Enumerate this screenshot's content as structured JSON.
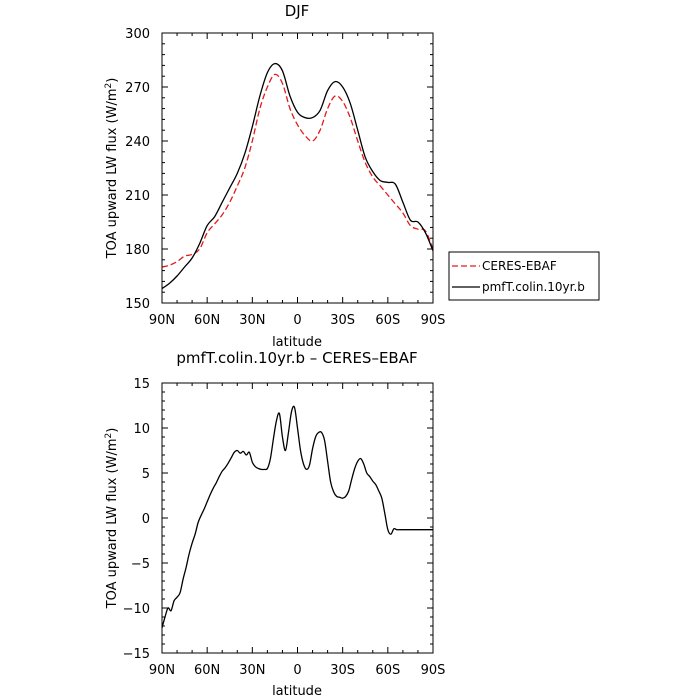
{
  "chart_data": [
    {
      "type": "line",
      "title": "DJF",
      "xlabel": "latitude",
      "ylabel": "TOA upward LW flux (W/m",
      "ylabel_sup": "2",
      "ylabel_close": ")",
      "x_ticks": [
        -90,
        -60,
        -30,
        0,
        30,
        60,
        90
      ],
      "x_tick_labels": [
        "90N",
        "60N",
        "30N",
        "0",
        "30S",
        "60S",
        "90S"
      ],
      "xlim": [
        -90,
        90
      ],
      "ylim": [
        150,
        300
      ],
      "y_ticks": [
        150,
        180,
        210,
        240,
        270,
        300
      ],
      "y_tick_labels": [
        "150",
        "180",
        "210",
        "240",
        "270",
        "300"
      ],
      "legend_position": "right",
      "series": [
        {
          "name": "CERES-EBAF",
          "color": "#e31a1c",
          "dash": "dashed",
          "x": [
            -90,
            -85,
            -80,
            -75,
            -70,
            -65,
            -60,
            -55,
            -50,
            -45,
            -40,
            -35,
            -30,
            -25,
            -20,
            -15,
            -10,
            -5,
            0,
            5,
            10,
            15,
            20,
            25,
            30,
            35,
            40,
            45,
            50,
            55,
            60,
            65,
            70,
            75,
            80,
            85,
            90
          ],
          "y": [
            170,
            171,
            173,
            176,
            177,
            180,
            189,
            194,
            199,
            206,
            215,
            225,
            240,
            258,
            270,
            277,
            272,
            258,
            249,
            243,
            240,
            246,
            258,
            265,
            262,
            253,
            240,
            228,
            220,
            215,
            210,
            205,
            200,
            193,
            191,
            190,
            180
          ]
        },
        {
          "name": "pmfT.colin.10yr.b",
          "color": "#000000",
          "dash": "solid",
          "x": [
            -90,
            -85,
            -80,
            -75,
            -70,
            -65,
            -60,
            -55,
            -50,
            -45,
            -40,
            -35,
            -30,
            -25,
            -20,
            -15,
            -10,
            -5,
            0,
            5,
            10,
            15,
            20,
            25,
            30,
            35,
            40,
            45,
            50,
            55,
            60,
            65,
            70,
            75,
            80,
            85,
            90
          ],
          "y": [
            158,
            161,
            165,
            170,
            175,
            183,
            193,
            198,
            206,
            214,
            222,
            233,
            248,
            265,
            278,
            283,
            279,
            265,
            256,
            253,
            253,
            257,
            268,
            273,
            270,
            261,
            246,
            231,
            223,
            218,
            217,
            216,
            206,
            196,
            195,
            189,
            179
          ]
        }
      ]
    },
    {
      "type": "line",
      "title": "pmfT.colin.10yr.b – CERES–EBAF",
      "xlabel": "latitude",
      "ylabel": "TOA upward LW flux (W/m",
      "ylabel_sup": "2",
      "ylabel_close": ")",
      "x_ticks": [
        -90,
        -60,
        -30,
        0,
        30,
        60,
        90
      ],
      "x_tick_labels": [
        "90N",
        "60N",
        "30N",
        "0",
        "30S",
        "60S",
        "90S"
      ],
      "xlim": [
        -90,
        90
      ],
      "ylim": [
        -15,
        15
      ],
      "y_ticks": [
        -15,
        -10,
        -5,
        0,
        5,
        10,
        15
      ],
      "y_tick_labels": [
        "−15",
        "−10",
        "−5",
        "0",
        "5",
        "10",
        "15"
      ],
      "series": [
        {
          "color": "#000000",
          "dash": "solid",
          "x": [
            -90,
            -88,
            -86,
            -84,
            -82,
            -80,
            -78,
            -76,
            -74,
            -72,
            -70,
            -68,
            -66,
            -64,
            -62,
            -60,
            -58,
            -56,
            -54,
            -52,
            -50,
            -48,
            -46,
            -44,
            -42,
            -40,
            -38,
            -36,
            -34,
            -32,
            -30,
            -28,
            -26,
            -24,
            -22,
            -20,
            -18,
            -16,
            -14,
            -12,
            -10,
            -8,
            -6,
            -4,
            -2,
            0,
            2,
            4,
            6,
            8,
            10,
            12,
            14,
            16,
            18,
            20,
            22,
            24,
            26,
            28,
            30,
            32,
            34,
            36,
            38,
            40,
            42,
            44,
            46,
            48,
            50,
            52,
            54,
            56,
            58,
            60,
            62,
            64,
            66,
            68,
            70,
            72,
            74,
            76,
            78,
            80,
            82,
            84,
            86,
            88,
            90
          ],
          "y": [
            -12.2,
            -11.0,
            -10.0,
            -10.3,
            -9.2,
            -8.8,
            -8.3,
            -6.8,
            -5.5,
            -4.0,
            -2.8,
            -1.8,
            -0.5,
            0.3,
            1.0,
            1.8,
            2.6,
            3.3,
            3.9,
            4.6,
            5.2,
            5.6,
            6.1,
            6.7,
            7.3,
            7.5,
            7.2,
            7.4,
            7.0,
            7.3,
            6.2,
            5.7,
            5.5,
            5.4,
            5.4,
            5.5,
            6.6,
            8.8,
            10.8,
            11.6,
            9.0,
            7.5,
            9.5,
            11.8,
            12.3,
            10.0,
            7.5,
            6.0,
            5.4,
            5.9,
            7.7,
            9.0,
            9.5,
            9.5,
            8.6,
            6.3,
            4.0,
            2.9,
            2.4,
            2.3,
            2.2,
            2.4,
            3.0,
            4.3,
            5.5,
            6.3,
            6.6,
            6.0,
            5.0,
            4.6,
            4.1,
            3.7,
            3.0,
            2.2,
            0.5,
            -1.3,
            -1.8,
            -1.2,
            -1.3,
            -1.3,
            -1.3,
            -1.3,
            -1.3,
            -1.3,
            -1.3,
            -1.3,
            -1.3,
            -1.3,
            -1.3,
            -1.3,
            -1.3
          ]
        }
      ]
    }
  ]
}
